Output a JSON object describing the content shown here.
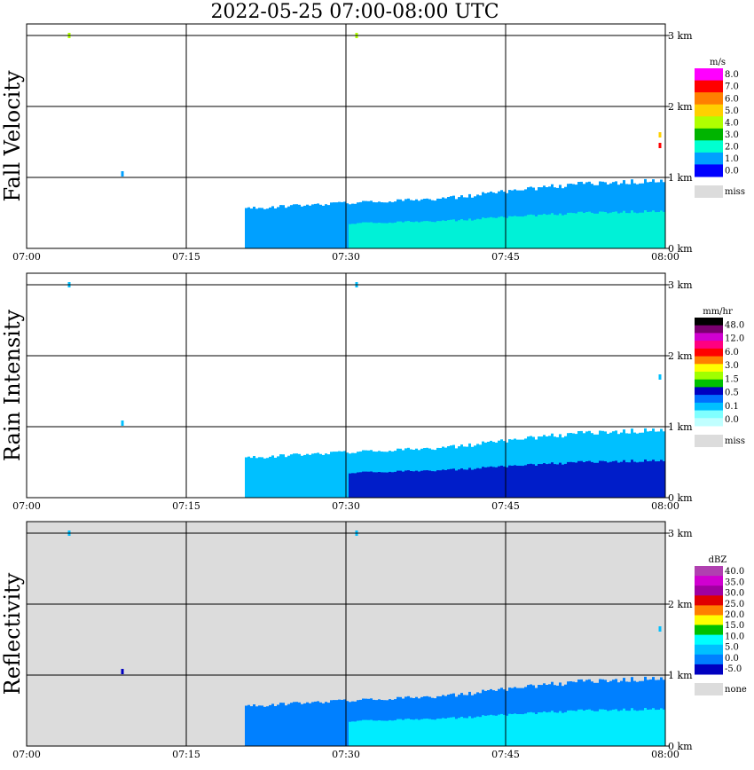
{
  "title": "2022-05-25   07:00-08:00 UTC",
  "time_ticks": [
    "07:00",
    "07:15",
    "07:30",
    "07:45",
    "08:00"
  ],
  "height_ticks": [
    "0 km",
    "1 km",
    "2 km",
    "3 km"
  ],
  "chart_data": [
    {
      "type": "heatmap",
      "panel": "fall-velocity",
      "ylabel": "Fall Velocity",
      "xlabel": "",
      "x_range": [
        "07:00",
        "08:00"
      ],
      "y_range_km": [
        0,
        3.0
      ],
      "grid": true,
      "background": "#ffffff",
      "colorbar": {
        "unit": "m/s",
        "labels": [
          "8.0",
          "7.0",
          "6.0",
          "5.0",
          "4.0",
          "3.0",
          "2.0",
          "1.0",
          "0.0"
        ],
        "colors": [
          "#ff00ff",
          "#ff0000",
          "#ff8000",
          "#ffd000",
          "#b0ff00",
          "#00b400",
          "#00ffd0",
          "#00a0ff",
          "#0000ff"
        ],
        "missing_label": "miss",
        "missing_color": "#dcdcdc"
      },
      "echo_top_km": [
        0.05,
        0.06,
        0.08,
        0.1,
        0.62,
        0.58,
        0.6,
        0.64,
        0.66,
        0.7,
        0.72,
        0.76,
        0.84,
        0.9,
        0.95,
        0.98
      ],
      "echo_base_value": 1.0,
      "echo_core_value": 2.0,
      "features": [
        {
          "t_min": 4.0,
          "h_km": 3.0,
          "value": 4.0
        },
        {
          "t_min": 31.0,
          "h_km": 3.0,
          "value": 4.0
        },
        {
          "t_min": 9.0,
          "h_km": 1.05,
          "value": 1.5
        },
        {
          "t_min": 59.5,
          "h_km": 1.6,
          "value": 5.0
        },
        {
          "t_min": 59.5,
          "h_km": 1.45,
          "value": 7.0
        }
      ]
    },
    {
      "type": "heatmap",
      "panel": "rain-intensity",
      "ylabel": "Rain Intensity",
      "xlabel": "",
      "x_range": [
        "07:00",
        "08:00"
      ],
      "y_range_km": [
        0,
        3.0
      ],
      "grid": true,
      "background": "#ffffff",
      "colorbar": {
        "unit": "mm/hr",
        "labels": [
          "48.0",
          "12.0",
          "6.0",
          "3.0",
          "1.5",
          "0.5",
          "0.1",
          "0.0"
        ],
        "colors": [
          "#000000",
          "#7a0070",
          "#d000d0",
          "#ff0080",
          "#ff0000",
          "#ff8000",
          "#ffff00",
          "#a0ff00",
          "#00c000",
          "#0000c0",
          "#0070ff",
          "#00c0ff",
          "#80ffff",
          "#c0ffff"
        ],
        "missing_label": "miss",
        "missing_color": "#dcdcdc"
      },
      "echo_top_km": [
        0.05,
        0.06,
        0.08,
        0.1,
        0.62,
        0.58,
        0.6,
        0.64,
        0.66,
        0.7,
        0.72,
        0.76,
        0.84,
        0.9,
        0.95,
        0.98
      ],
      "echo_base_value": 0.1,
      "echo_core_value": 1.0,
      "features": [
        {
          "t_min": 4.0,
          "h_km": 3.0,
          "value": 0.1
        },
        {
          "t_min": 31.0,
          "h_km": 3.0,
          "value": 0.1
        },
        {
          "t_min": 9.0,
          "h_km": 1.05,
          "value": 0.1
        },
        {
          "t_min": 59.5,
          "h_km": 1.7,
          "value": 0.1
        }
      ]
    },
    {
      "type": "heatmap",
      "panel": "reflectivity",
      "ylabel": "Reflectivity",
      "xlabel": "",
      "x_range": [
        "07:00",
        "08:00"
      ],
      "y_range_km": [
        0,
        3.0
      ],
      "grid": true,
      "background": "#dcdcdc",
      "colorbar": {
        "unit": "dBZ",
        "labels": [
          "40.0",
          "35.0",
          "30.0",
          "25.0",
          "20.0",
          "15.0",
          "10.0",
          "5.0",
          "0.0",
          "-5.0"
        ],
        "colors": [
          "#b040b0",
          "#d000d0",
          "#a000a0",
          "#e00000",
          "#ff8000",
          "#ffff00",
          "#00c000",
          "#00ffff",
          "#00c0ff",
          "#0080ff",
          "#0000c0"
        ],
        "missing_label": "none",
        "missing_color": "#dcdcdc"
      },
      "echo_top_km": [
        0.05,
        0.06,
        0.08,
        0.1,
        0.62,
        0.58,
        0.6,
        0.64,
        0.66,
        0.7,
        0.72,
        0.76,
        0.84,
        0.9,
        0.95,
        0.98
      ],
      "echo_base_value": 0.0,
      "echo_core_value": 10.0,
      "features": [
        {
          "t_min": 4.0,
          "h_km": 3.0,
          "value": 5.0
        },
        {
          "t_min": 31.0,
          "h_km": 3.0,
          "value": 5.0
        },
        {
          "t_min": 9.0,
          "h_km": 1.05,
          "value": -5.0
        },
        {
          "t_min": 59.5,
          "h_km": 1.65,
          "value": 5.0
        }
      ]
    }
  ]
}
